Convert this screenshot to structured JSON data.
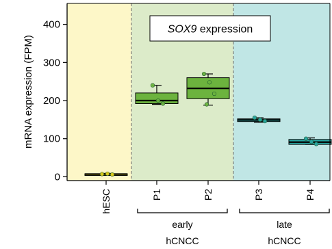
{
  "chart_data": {
    "type": "box",
    "title_gene": "SOX9",
    "title_rest": " expression",
    "ylabel": "mRNA expression (FPM)",
    "ylim": [
      -10,
      455
    ],
    "yticks": [
      0,
      100,
      200,
      300,
      400
    ],
    "categories": [
      "hESC",
      "P1",
      "P2",
      "P3",
      "P4"
    ],
    "regions": [
      {
        "from": "hESC",
        "to": "hESC",
        "color": "#fdf7c8"
      },
      {
        "from": "P1",
        "to": "P2",
        "color": "#dcebc9"
      },
      {
        "from": "P3",
        "to": "P4",
        "color": "#c0e6e5"
      }
    ],
    "groups": [
      {
        "label_line1": "early",
        "label_line2": "hCNCC",
        "from": "P1",
        "to": "P2"
      },
      {
        "label_line1": "late",
        "label_line2": "hCNCC",
        "from": "P3",
        "to": "P4"
      }
    ],
    "series": [
      {
        "category": "hESC",
        "color": "#e1cf1b",
        "min": 6,
        "q1": 6,
        "median": 7,
        "q3": 8,
        "max": 9,
        "points": [
          7,
          8,
          6
        ]
      },
      {
        "category": "P1",
        "color": "#6cb33e",
        "min": 190,
        "q1": 192,
        "median": 200,
        "q3": 220,
        "max": 240,
        "points": [
          240,
          200,
          192
        ]
      },
      {
        "category": "P2",
        "color": "#6cb33e",
        "min": 188,
        "q1": 205,
        "median": 232,
        "q3": 260,
        "max": 270,
        "points": [
          270,
          248,
          218,
          190
        ]
      },
      {
        "category": "P3",
        "color": "#29a6a2",
        "min": 143,
        "q1": 145,
        "median": 149,
        "q3": 152,
        "max": 155,
        "points": [
          155,
          150,
          146
        ]
      },
      {
        "category": "P4",
        "color": "#29a6a2",
        "min": 85,
        "q1": 85,
        "median": 91,
        "q3": 98,
        "max": 102,
        "points": [
          100,
          92,
          86
        ]
      }
    ]
  }
}
